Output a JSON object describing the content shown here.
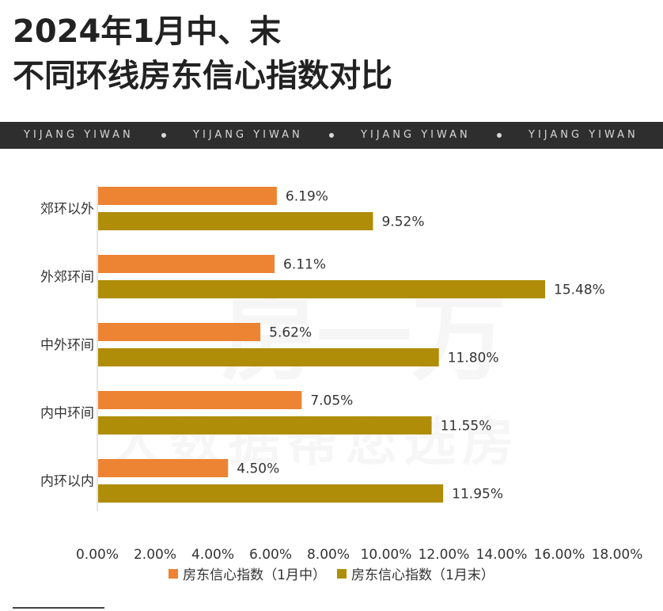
{
  "title_line1": "2024年1月中、末",
  "title_line2": "不同环线房东信心指数对比",
  "band_text": "YIJANG YIWAN",
  "watermark_line1": "一房一万",
  "watermark_line2": "大数据帮您选房",
  "colors": {
    "mid": "#ED8433",
    "end": "#B08D08",
    "band": "#2e2e2e"
  },
  "chart_data": {
    "type": "bar",
    "orientation": "horizontal",
    "categories": [
      "郊环以外",
      "外郊环间",
      "中外环间",
      "内中环间",
      "内环以内"
    ],
    "series": [
      {
        "name": "房东信心指数（1月中）",
        "values": [
          6.19,
          6.11,
          5.62,
          7.05,
          4.5
        ],
        "labels": [
          "6.19%",
          "6.11%",
          "5.62%",
          "7.05%",
          "4.50%"
        ]
      },
      {
        "name": "房东信心指数（1月末）",
        "values": [
          9.52,
          15.48,
          11.8,
          11.55,
          11.95
        ],
        "labels": [
          "9.52%",
          "15.48%",
          "11.80%",
          "11.55%",
          "11.95%"
        ]
      }
    ],
    "x_ticks": [
      "0.00%",
      "2.00%",
      "4.00%",
      "6.00%",
      "8.00%",
      "10.00%",
      "12.00%",
      "14.00%",
      "16.00%",
      "18.00%"
    ],
    "xlim": [
      0,
      18
    ],
    "grid": false,
    "legend_position": "bottom"
  }
}
